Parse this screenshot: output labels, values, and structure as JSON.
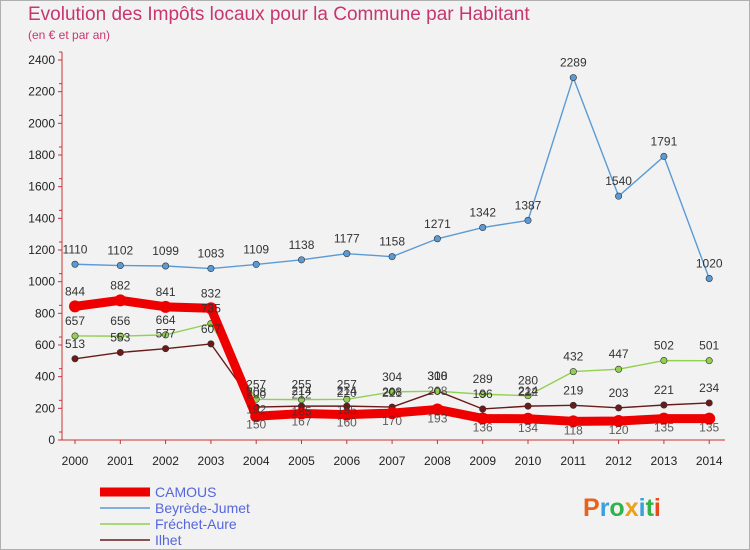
{
  "title": "Evolution des Impôts locaux pour la Commune par Habitant",
  "subtitle": "(en € et par an)",
  "logo": {
    "text": "Proxiti",
    "colors": [
      "#e8621c",
      "#3aa0e0",
      "#2fb34a",
      "#e8a21c",
      "#3aa0e0",
      "#2fb34a",
      "#e84a1c"
    ]
  },
  "chart_data": {
    "type": "line",
    "title": "Evolution des Impôts locaux pour la Commune par Habitant",
    "subtitle": "(en € et par an)",
    "xlabel": "",
    "ylabel": "",
    "x": [
      "2000",
      "2001",
      "2002",
      "2003",
      "2004",
      "2005",
      "2006",
      "2007",
      "2008",
      "2009",
      "2010",
      "2011",
      "2012",
      "2013",
      "2014"
    ],
    "ylim": [
      0,
      2400
    ],
    "yticks": [
      0,
      200,
      400,
      600,
      800,
      1000,
      1200,
      1400,
      1600,
      1800,
      2000,
      2200,
      2400
    ],
    "grid": false,
    "legend_position": "bottom-left",
    "series": [
      {
        "name": "CAMOUS",
        "color": "#ee0000",
        "values": [
          844,
          882,
          841,
          832,
          150,
          167,
          160,
          170,
          193,
          136,
          134,
          118,
          120,
          135,
          135
        ],
        "labels": [
          "844",
          "882",
          "841",
          "832",
          "",
          "",
          "",
          "",
          "",
          "",
          "",
          "",
          "",
          "",
          ""
        ]
      },
      {
        "name": "Beyrède-Jumet",
        "color": "#5b9bd5",
        "values": [
          1110,
          1102,
          1099,
          1083,
          1109,
          1138,
          1177,
          1158,
          1271,
          1342,
          1387,
          2289,
          1540,
          1791,
          1020
        ]
      },
      {
        "name": "Fréchet-Aure",
        "color": "#92d050",
        "values": [
          657,
          656,
          664,
          735,
          257,
          255,
          257,
          304,
          308,
          289,
          280,
          432,
          447,
          502,
          501
        ]
      },
      {
        "name": "Ilhet",
        "color": "#6b1a1a",
        "values": [
          513,
          553,
          577,
          607,
          208,
          214,
          214,
          208,
          310,
          196,
          214,
          219,
          203,
          221,
          234
        ],
        "labels": [
          "513",
          "553",
          "577",
          "607",
          "208",
          "214",
          "214",
          "208",
          "310",
          "196",
          "214",
          "219",
          "203",
          "221",
          "234"
        ]
      }
    ],
    "extra_labels": [
      "193",
      "136",
      "134",
      "118",
      "120",
      "135",
      "135",
      "150",
      "167",
      "160",
      "170",
      "200",
      "212",
      "220",
      "221",
      "208",
      "222",
      "192",
      "185",
      "195"
    ]
  }
}
